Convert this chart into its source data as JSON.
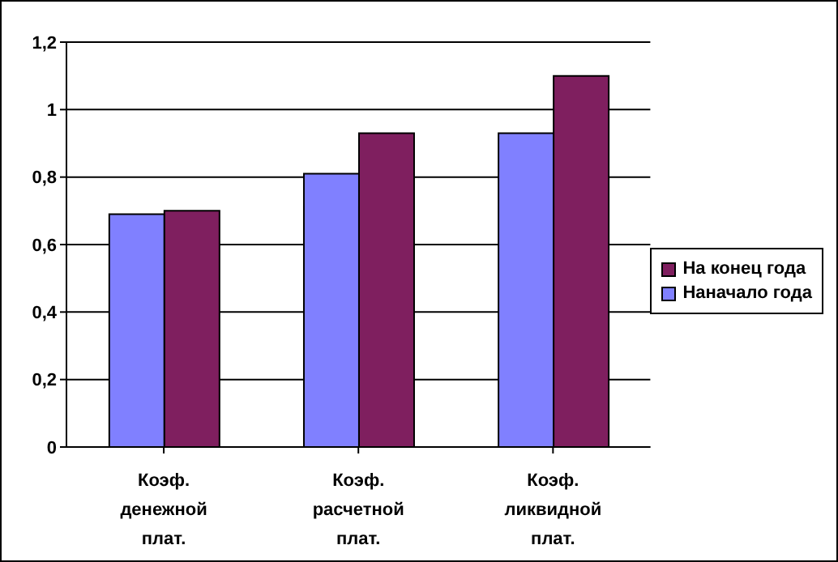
{
  "chart_data": {
    "type": "bar",
    "categories": [
      "Коэф. денежной плат.",
      "Коэф. расчетной плат.",
      "Коэф. ликвидной плат."
    ],
    "series": [
      {
        "name": "Наначало года",
        "color": "#8080ff",
        "values": [
          0.69,
          0.81,
          0.93
        ]
      },
      {
        "name": "На конец года",
        "color": "#7f1f5f",
        "values": [
          0.7,
          0.93,
          1.1
        ]
      }
    ],
    "ylim": [
      0,
      1.2
    ],
    "yticks": [
      0,
      {
        "value": 0.2,
        "label": "0,2"
      },
      {
        "value": 0.4,
        "label": "0,4"
      },
      {
        "value": 0.6,
        "label": "0,6"
      },
      {
        "value": 0.8,
        "label": "0,8"
      },
      1,
      {
        "value": 1.2,
        "label": "1,2"
      }
    ],
    "grid": "y",
    "legend": "right"
  }
}
